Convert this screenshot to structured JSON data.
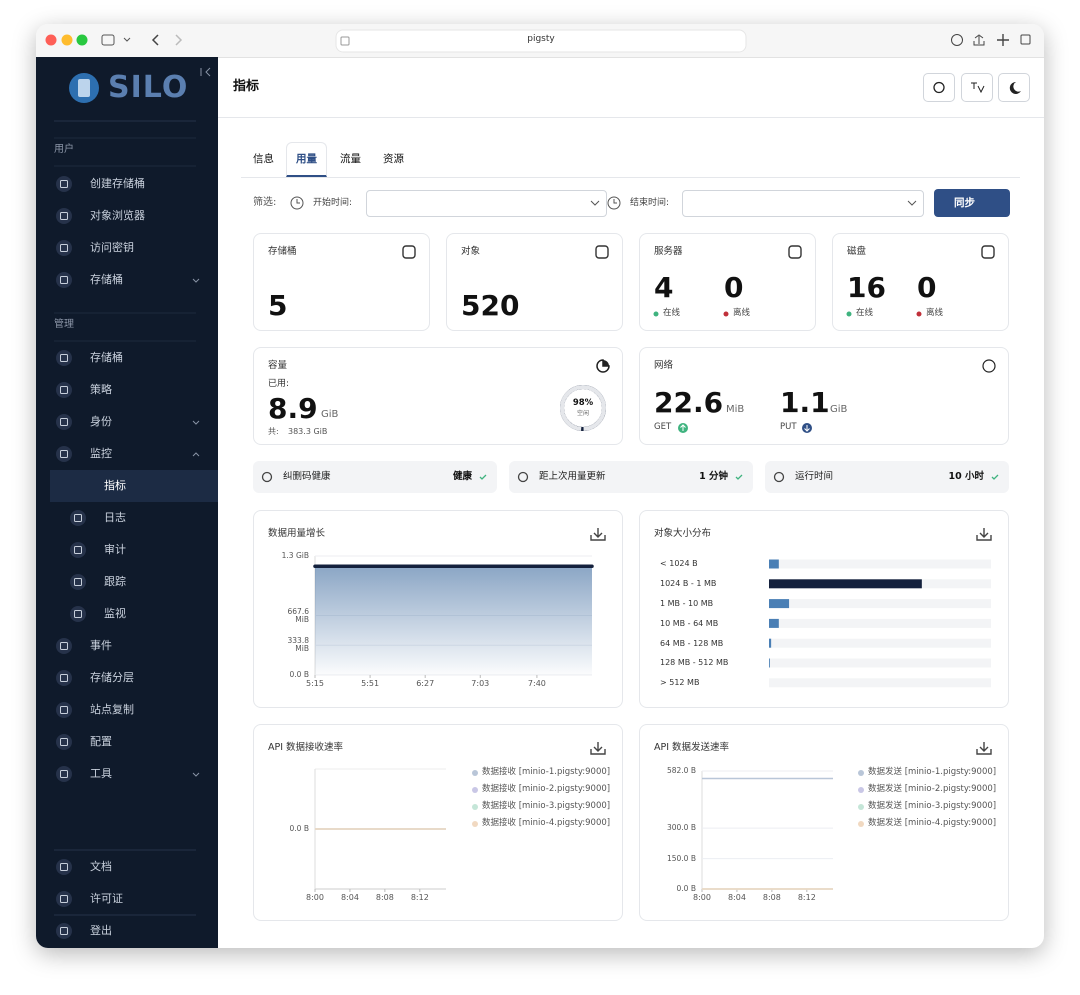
{
  "browser": {
    "url": "pigsty"
  },
  "sidebar": {
    "logo": "SILO",
    "groups": [
      {
        "title": "用户",
        "items": [
          {
            "label": "创建存储桶"
          },
          {
            "label": "对象浏览器"
          },
          {
            "label": "访问密钥"
          },
          {
            "label": "存储桶",
            "expand": "down"
          }
        ]
      },
      {
        "title": "管理",
        "items": [
          {
            "label": "存储桶"
          },
          {
            "label": "策略"
          },
          {
            "label": "身份",
            "expand": "down"
          },
          {
            "label": "监控",
            "expand": "up"
          },
          {
            "label": "指标",
            "sub": true,
            "active": true
          },
          {
            "label": "日志",
            "sub": true
          },
          {
            "label": "审计",
            "sub": true
          },
          {
            "label": "跟踪",
            "sub": true
          },
          {
            "label": "监视",
            "sub": true
          },
          {
            "label": "事件"
          },
          {
            "label": "存储分层"
          },
          {
            "label": "站点复制"
          },
          {
            "label": "配置"
          },
          {
            "label": "工具",
            "expand": "down"
          }
        ]
      }
    ],
    "footer": [
      {
        "label": "文档"
      },
      {
        "label": "许可证"
      },
      {
        "label": "登出"
      }
    ]
  },
  "header": {
    "title": "指标"
  },
  "tabs": {
    "items": [
      "信息",
      "用量",
      "流量",
      "资源"
    ],
    "active": 1
  },
  "filter": {
    "label": "筛选:",
    "start": "开始时间:",
    "end": "结束时间:",
    "button": "同步"
  },
  "stats": [
    {
      "title": "存储桶",
      "value": 5
    },
    {
      "title": "对象",
      "value": 520
    },
    {
      "title": "服务器",
      "online": 4,
      "offline": 0,
      "online_label": "在线",
      "offline_label": "离线"
    },
    {
      "title": "磁盘",
      "online": 16,
      "offline": 0,
      "online_label": "在线",
      "offline_label": "离线"
    }
  ],
  "capacity": {
    "title": "容量",
    "used_label": "已用:",
    "used": 8.9,
    "unit": "GiB",
    "total_label": "共:",
    "total": "383.3 GiB",
    "free": 98,
    "free_label": "98%",
    "free_text": "空闲"
  },
  "network": {
    "title": "网络",
    "get": 22.6,
    "get_unit": "MiB",
    "get_label": "GET",
    "put": 1.1,
    "put_unit": "GiB",
    "put_label": "PUT"
  },
  "status": [
    {
      "label": "纠删码健康",
      "value": "健康"
    },
    {
      "label": "距上次用量更新",
      "value": "1 分钟"
    },
    {
      "label": "运行时间",
      "value": "10 小时"
    }
  ],
  "chart_data": [
    {
      "type": "area",
      "title": "数据用量增长",
      "x": [
        315,
        351,
        387,
        423,
        460,
        496
      ],
      "series": [
        {
          "color": "#14213d",
          "values": [
            1220,
            1220,
            1220,
            1220,
            1220,
            1220
          ]
        }
      ],
      "xlim": [
        315,
        496
      ],
      "xticks": [
        {
          "value": 315,
          "label": "5:15"
        },
        {
          "value": 351,
          "label": "5:51"
        },
        {
          "value": 387,
          "label": "6:27"
        },
        {
          "value": 423,
          "label": "7:03"
        },
        {
          "value": 460,
          "label": "7:40"
        }
      ],
      "ylim": [
        0,
        1335.2
      ],
      "yticks": [
        {
          "value": 0,
          "label": "0.0 B"
        },
        {
          "value": 333.8,
          "label": "333.8 MiB"
        },
        {
          "value": 667.6,
          "label": "667.6 MiB"
        },
        {
          "value": 1335.2,
          "label": "1.3 GiB"
        }
      ]
    },
    {
      "type": "hbar",
      "title": "对象大小分布",
      "categories": [
        "< 1024 B",
        "1024 B - 1 MB",
        "1 MB - 10 MB",
        "10 MB - 64 MB",
        "64 MB - 128 MB",
        "128 MB - 512 MB",
        "> 512 MB"
      ],
      "values": [
        23,
        358,
        47,
        23,
        5,
        2,
        0
      ],
      "xlim": [
        0,
        520
      ],
      "colors": [
        "#4a7fb5",
        "#14213d",
        "#4a7fb5",
        "#4a7fb5",
        "#4a7fb5",
        "#4a7fb5",
        "#4a7fb5"
      ]
    },
    {
      "type": "line",
      "title": "API 数据接收速率",
      "x": [
        480,
        484,
        488,
        492,
        495
      ],
      "xlim": [
        480,
        495
      ],
      "xticks": [
        {
          "value": 480,
          "label": "8:00"
        },
        {
          "value": 484,
          "label": "8:04"
        },
        {
          "value": 488,
          "label": "8:08"
        },
        {
          "value": 492,
          "label": "8:12"
        }
      ],
      "ylim": [
        -1,
        1
      ],
      "yticks": [
        {
          "value": 0,
          "label": "0.0 B"
        }
      ],
      "series": [
        {
          "name": "数据接收 [minio-1.pigsty:9000]",
          "color": "#b9c6d8",
          "values": [
            0,
            0,
            0,
            0,
            0
          ]
        },
        {
          "name": "数据接收 [minio-2.pigsty:9000]",
          "color": "#c9c7e6",
          "values": [
            0,
            0,
            0,
            0,
            0
          ]
        },
        {
          "name": "数据接收 [minio-3.pigsty:9000]",
          "color": "#c5e6d8",
          "values": [
            0,
            0,
            0,
            0,
            0
          ]
        },
        {
          "name": "数据接收 [minio-4.pigsty:9000]",
          "color": "#f1d9c1",
          "values": [
            0,
            0,
            0,
            0,
            0
          ]
        }
      ]
    },
    {
      "type": "line",
      "title": "API 数据发送速率",
      "x": [
        480,
        484,
        488,
        492,
        495
      ],
      "xlim": [
        480,
        495
      ],
      "xticks": [
        {
          "value": 480,
          "label": "8:00"
        },
        {
          "value": 484,
          "label": "8:04"
        },
        {
          "value": 488,
          "label": "8:08"
        },
        {
          "value": 492,
          "label": "8:12"
        }
      ],
      "ylim": [
        0,
        582
      ],
      "yticks": [
        {
          "value": 0,
          "label": "0.0 B"
        },
        {
          "value": 150,
          "label": "150.0 B"
        },
        {
          "value": 300,
          "label": "300.0 B"
        },
        {
          "value": 582,
          "label": "582.0 B"
        }
      ],
      "series": [
        {
          "name": "数据发送 [minio-1.pigsty:9000]",
          "color": "#b9c6d8",
          "values": [
            545,
            545,
            545,
            545,
            545
          ]
        },
        {
          "name": "数据发送 [minio-2.pigsty:9000]",
          "color": "#c9c7e6",
          "values": [
            0,
            0,
            0,
            0,
            0
          ]
        },
        {
          "name": "数据发送 [minio-3.pigsty:9000]",
          "color": "#c5e6d8",
          "values": [
            0,
            0,
            0,
            0,
            0
          ]
        },
        {
          "name": "数据发送 [minio-4.pigsty:9000]",
          "color": "#f1d9c1",
          "values": [
            0,
            0,
            0,
            0,
            0
          ]
        }
      ]
    }
  ]
}
